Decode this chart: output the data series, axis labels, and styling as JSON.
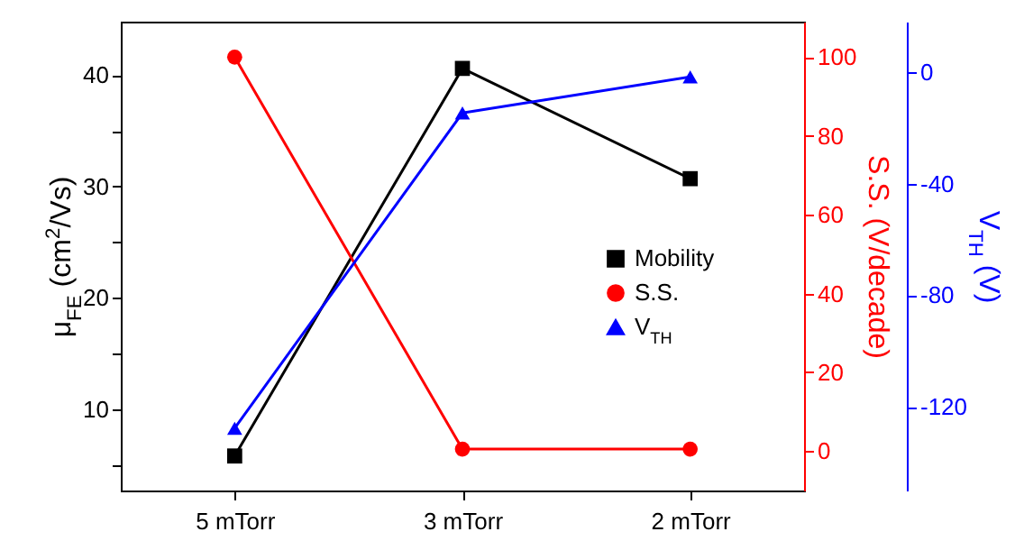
{
  "chart_data": {
    "type": "line",
    "categories": [
      "5 mTorr",
      "3 mTorr",
      "2 mTorr"
    ],
    "ylabel": "μ$_{FE}$ (cm$^{2}$/Vs)",
    "y2label": "S.S. (V/decade)",
    "y3label": "V$_{TH}$ (V)",
    "ylim": [
      2.7,
      44.8
    ],
    "yticks": [
      {
        "value": 5,
        "label": null
      },
      10,
      {
        "value": 15,
        "label": null
      },
      20,
      {
        "value": 25,
        "label": null
      },
      30,
      {
        "value": 35,
        "label": null
      },
      40
    ],
    "y2lim": [
      -10,
      109
    ],
    "y2ticks": [
      0,
      20,
      40,
      60,
      80,
      100
    ],
    "y3lim": [
      -150,
      18
    ],
    "y3ticks": [
      -120,
      -80,
      -40,
      0
    ],
    "series": [
      {
        "name": "Mobility",
        "color": "#000000",
        "marker": "square",
        "values": [
          5.8,
          40.6,
          30.7
        ]
      },
      {
        "name": "S.S.",
        "color": "#ff0000",
        "marker": "circle",
        "axis": "y2",
        "values": [
          100,
          0.5,
          0.5
        ]
      },
      {
        "name": "V$_{TH}$",
        "color": "#0000ff",
        "marker": "triangle",
        "axis": "y3",
        "values": [
          -127.7,
          -14.7,
          -1.8
        ]
      }
    ],
    "legend": "right",
    "line_style": "solid",
    "grid": false
  }
}
